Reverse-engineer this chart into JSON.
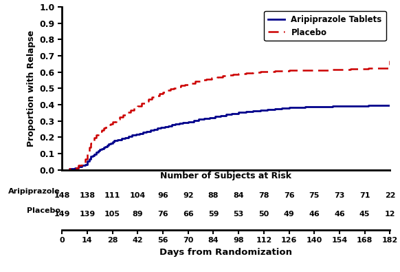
{
  "ylabel": "Proportion with Relapse",
  "xlabel": "Days from Randomization",
  "risk_label": "Number of Subjects at Risk",
  "ylim": [
    0.0,
    1.0
  ],
  "xlim": [
    0,
    182
  ],
  "yticks": [
    0.0,
    0.1,
    0.2,
    0.3,
    0.4,
    0.5,
    0.6,
    0.7,
    0.8,
    0.9,
    1.0
  ],
  "xticks": [
    0,
    14,
    28,
    42,
    56,
    70,
    84,
    98,
    112,
    126,
    140,
    154,
    168,
    182
  ],
  "aripiprazole_color": "#00008B",
  "placebo_color": "#CC0000",
  "risk_days": [
    0,
    14,
    28,
    42,
    56,
    70,
    84,
    98,
    112,
    126,
    140,
    154,
    168,
    182
  ],
  "aripiprazole_risk": [
    148,
    138,
    111,
    104,
    96,
    92,
    88,
    84,
    78,
    76,
    75,
    73,
    71,
    22
  ],
  "placebo_risk": [
    149,
    139,
    105,
    89,
    76,
    66,
    59,
    53,
    50,
    49,
    46,
    46,
    45,
    12
  ],
  "aripiprazole_km_x": [
    0,
    4,
    7,
    9,
    11,
    13,
    14,
    15,
    16,
    17,
    18,
    19,
    20,
    21,
    22,
    23,
    24,
    25,
    26,
    27,
    28,
    29,
    31,
    33,
    35,
    37,
    39,
    41,
    43,
    45,
    47,
    49,
    51,
    53,
    55,
    57,
    59,
    61,
    63,
    65,
    67,
    70,
    73,
    76,
    79,
    82,
    85,
    88,
    91,
    94,
    98,
    102,
    106,
    110,
    114,
    118,
    122,
    126,
    130,
    135,
    140,
    150,
    160,
    170,
    182
  ],
  "aripiprazole_km_y": [
    0.0,
    0.007,
    0.014,
    0.02,
    0.027,
    0.034,
    0.055,
    0.068,
    0.082,
    0.089,
    0.096,
    0.11,
    0.117,
    0.124,
    0.131,
    0.138,
    0.145,
    0.152,
    0.158,
    0.165,
    0.172,
    0.179,
    0.186,
    0.193,
    0.199,
    0.206,
    0.213,
    0.22,
    0.224,
    0.231,
    0.237,
    0.244,
    0.25,
    0.256,
    0.261,
    0.266,
    0.271,
    0.276,
    0.281,
    0.286,
    0.291,
    0.296,
    0.304,
    0.311,
    0.317,
    0.322,
    0.328,
    0.334,
    0.34,
    0.346,
    0.352,
    0.358,
    0.363,
    0.367,
    0.371,
    0.375,
    0.378,
    0.382,
    0.385,
    0.387,
    0.389,
    0.391,
    0.393,
    0.395,
    0.397
  ],
  "placebo_km_x": [
    0,
    4,
    7,
    9,
    11,
    13,
    14,
    15,
    16,
    17,
    18,
    19,
    20,
    21,
    22,
    23,
    24,
    25,
    26,
    27,
    28,
    30,
    32,
    34,
    36,
    38,
    40,
    42,
    44,
    46,
    48,
    50,
    52,
    54,
    56,
    58,
    60,
    62,
    64,
    66,
    68,
    71,
    74,
    77,
    80,
    83,
    86,
    89,
    92,
    95,
    98,
    102,
    106,
    110,
    114,
    118,
    122,
    126,
    130,
    135,
    140,
    150,
    160,
    170,
    182
  ],
  "placebo_km_y": [
    0.0,
    0.007,
    0.014,
    0.028,
    0.042,
    0.069,
    0.11,
    0.138,
    0.162,
    0.179,
    0.196,
    0.213,
    0.224,
    0.235,
    0.245,
    0.255,
    0.262,
    0.269,
    0.276,
    0.283,
    0.295,
    0.31,
    0.325,
    0.338,
    0.352,
    0.365,
    0.378,
    0.393,
    0.407,
    0.42,
    0.433,
    0.445,
    0.456,
    0.467,
    0.478,
    0.487,
    0.496,
    0.503,
    0.51,
    0.517,
    0.524,
    0.533,
    0.542,
    0.551,
    0.558,
    0.564,
    0.57,
    0.576,
    0.581,
    0.586,
    0.591,
    0.596,
    0.599,
    0.602,
    0.604,
    0.606,
    0.608,
    0.61,
    0.611,
    0.612,
    0.613,
    0.615,
    0.618,
    0.625,
    0.67
  ]
}
